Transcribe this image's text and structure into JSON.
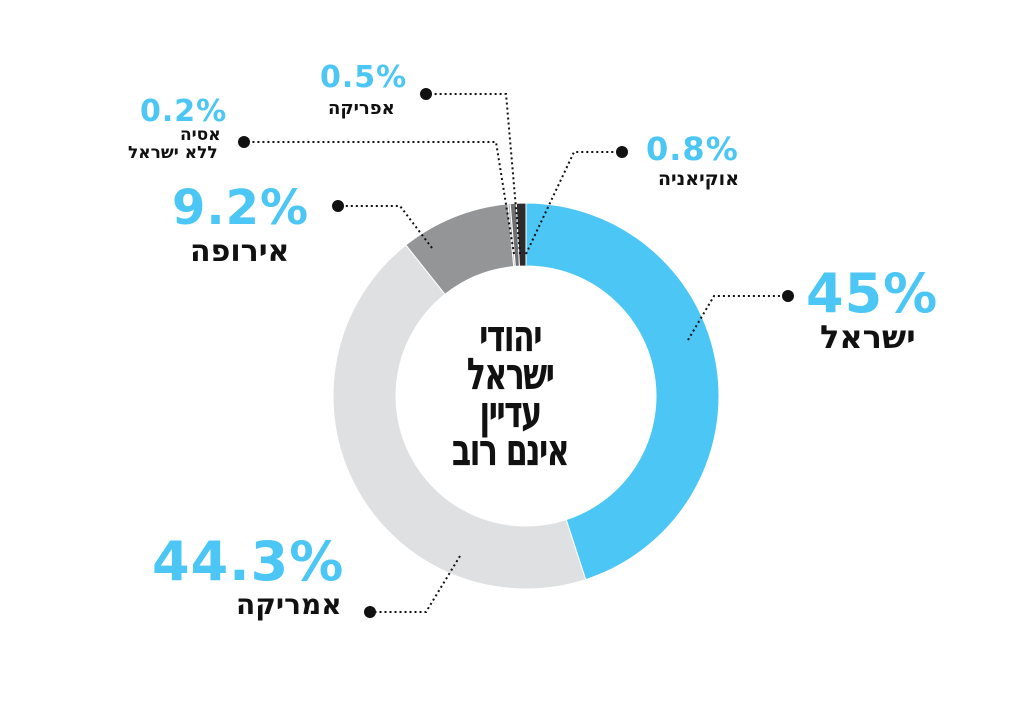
{
  "chart_data": {
    "type": "pie",
    "title": "יהודי ישראל עדיין אינם רוב",
    "title_lines": [
      "יהודי",
      "ישראל",
      "עדיין",
      "אינם רוב"
    ],
    "series": [
      {
        "name": "ישראל",
        "value": 45,
        "label": "45%",
        "color": "#4cc6f4"
      },
      {
        "name": "אמריקה",
        "value": 44.3,
        "label": "44.3%",
        "color": "#dfe0e1"
      },
      {
        "name": "אירופה",
        "value": 9.2,
        "label": "9.2%",
        "color": "#939597"
      },
      {
        "name": "אסיה ללא ישראל",
        "name_lines": [
          "אסיה",
          "ללא ישראל"
        ],
        "value": 0.2,
        "label": "0.2%",
        "color": "#b9babb"
      },
      {
        "name": "אפריקה",
        "value": 0.5,
        "label": "0.5%",
        "color": "#6d6f71"
      },
      {
        "name": "אוקיאניה",
        "value": 0.8,
        "label": "0.8%",
        "color": "#2c2c2c"
      }
    ],
    "legend": "none",
    "grid": false
  }
}
